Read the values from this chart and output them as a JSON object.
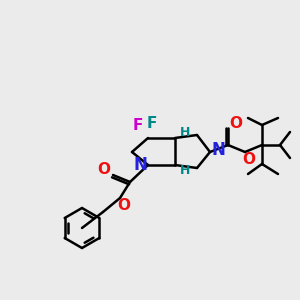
{
  "bg_color": "#ebebeb",
  "atom_colors": {
    "N": "#2222dd",
    "O": "#ee1111",
    "F_left": "#cc00cc",
    "F_right": "#008888",
    "H": "#008888",
    "C": "#000000"
  }
}
